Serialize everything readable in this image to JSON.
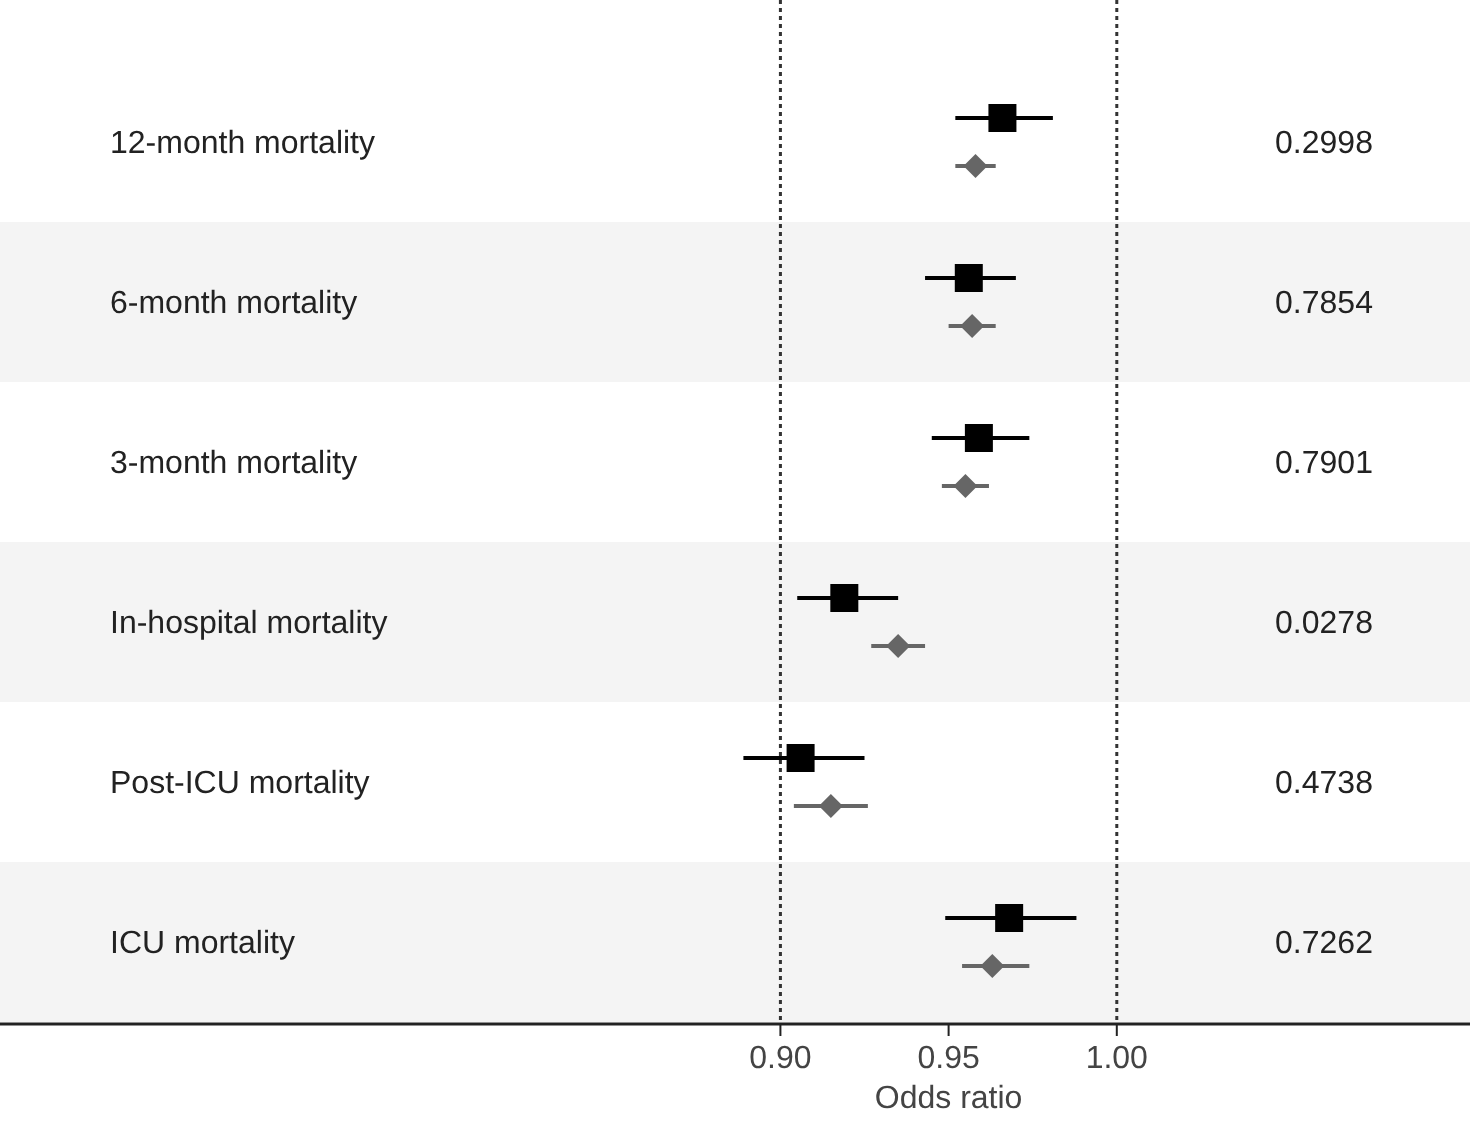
{
  "chart_data": {
    "type": "scatter",
    "orientation": "horizontal",
    "xlabel": "Odds ratio",
    "categories": [
      "12-month mortality",
      "6-month mortality",
      "3-month mortality",
      "In-hospital mortality",
      "Post-ICU mortality",
      "ICU mortality"
    ],
    "series": [
      {
        "color": "#000000",
        "marker": "square",
        "values": [
          0.966,
          0.956,
          0.959,
          0.919,
          0.906,
          0.968
        ],
        "errors": [
          [
            0.952,
            0.981
          ],
          [
            0.943,
            0.97
          ],
          [
            0.945,
            0.974
          ],
          [
            0.905,
            0.935
          ],
          [
            0.889,
            0.925
          ],
          [
            0.949,
            0.988
          ]
        ]
      },
      {
        "color": "#666666",
        "marker": "diamond",
        "values": [
          0.958,
          0.957,
          0.955,
          0.935,
          0.915,
          0.963
        ],
        "errors": [
          [
            0.952,
            0.964
          ],
          [
            0.95,
            0.964
          ],
          [
            0.948,
            0.962
          ],
          [
            0.927,
            0.943
          ],
          [
            0.904,
            0.926
          ],
          [
            0.954,
            0.974
          ]
        ]
      }
    ],
    "xlim": [
      0.668,
      1.105
    ],
    "xticks": [
      {
        "value": 0.9,
        "label": "0.90"
      },
      {
        "value": 0.95,
        "label": "0.95"
      },
      {
        "value": 1,
        "label": "1.00"
      }
    ],
    "ref_lines": [
      {
        "axis": "x",
        "value": 0.9,
        "line_style": "dotted"
      },
      {
        "axis": "x",
        "value": 1,
        "line_style": "dotted"
      }
    ],
    "annotations": [
      "0.2998",
      "0.7854",
      "0.7901",
      "0.0278",
      "0.4738",
      "0.7262"
    ],
    "grid": false
  }
}
